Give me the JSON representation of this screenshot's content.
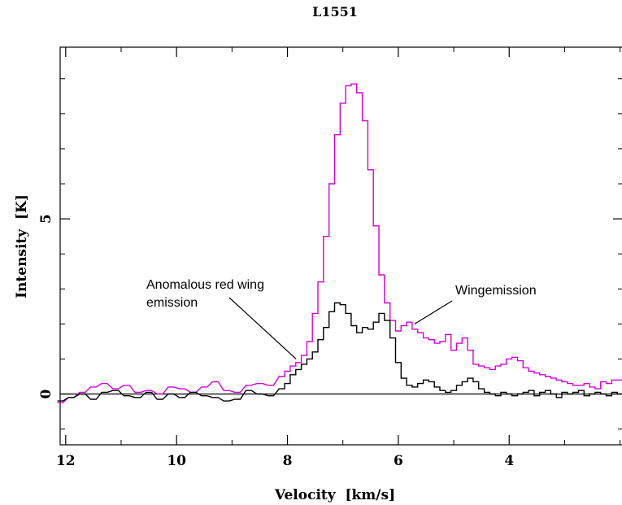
{
  "chart_data": {
    "type": "line",
    "title": "L1551",
    "xlabel": "Velocity  [km/s]",
    "ylabel": "Intensity  [K]",
    "xlim": [
      12.1,
      1.95
    ],
    "ylim": [
      -1.45,
      9.9
    ],
    "x_ticks": [
      12,
      10,
      8,
      6,
      4
    ],
    "x_tick_labels": [
      "12",
      "10",
      "8",
      "6",
      "4"
    ],
    "y_ticks": [
      0,
      5
    ],
    "y_tick_labels": [
      "0",
      "5"
    ],
    "grid": false,
    "legend": "none",
    "zero_line": true,
    "annotations": [
      {
        "text_lines": [
          "Anomalous red wing",
          "emission"
        ],
        "points_to": [
          7.8,
          1.0
        ]
      },
      {
        "text_lines": [
          "Wingemission"
        ],
        "points_to": [
          5.75,
          2.0
        ]
      }
    ],
    "series": [
      {
        "color": "#d400d4",
        "x": [
          12.1,
          11.9,
          11.7,
          11.5,
          11.3,
          11.1,
          10.9,
          10.7,
          10.5,
          10.3,
          10.1,
          9.9,
          9.7,
          9.5,
          9.3,
          9.1,
          8.9,
          8.7,
          8.5,
          8.3,
          8.1,
          8.0,
          7.9,
          7.8,
          7.7,
          7.6,
          7.5,
          7.4,
          7.3,
          7.2,
          7.1,
          7.0,
          6.9,
          6.8,
          6.7,
          6.6,
          6.5,
          6.4,
          6.3,
          6.2,
          6.1,
          6.0,
          5.9,
          5.8,
          5.7,
          5.6,
          5.5,
          5.4,
          5.3,
          5.2,
          5.1,
          5.0,
          4.9,
          4.8,
          4.7,
          4.6,
          4.5,
          4.4,
          4.3,
          4.2,
          4.1,
          4.0,
          3.9,
          3.8,
          3.7,
          3.6,
          3.5,
          3.4,
          3.3,
          3.2,
          3.1,
          3.0,
          2.9,
          2.8,
          2.7,
          2.6,
          2.5,
          2.4,
          2.3,
          2.2,
          2.1,
          2.0
        ],
        "y": [
          -0.25,
          -0.1,
          0.05,
          0.2,
          0.3,
          0.15,
          0.25,
          0.05,
          0.1,
          0.0,
          0.2,
          0.15,
          0.05,
          0.2,
          0.35,
          0.1,
          0.05,
          0.25,
          0.3,
          0.25,
          0.5,
          0.65,
          0.8,
          0.9,
          1.1,
          1.5,
          2.3,
          3.2,
          4.5,
          6.0,
          7.4,
          8.3,
          8.8,
          8.85,
          8.6,
          7.8,
          6.4,
          4.8,
          3.4,
          2.6,
          2.1,
          1.8,
          1.95,
          2.05,
          1.85,
          1.75,
          1.6,
          1.55,
          1.45,
          1.5,
          1.7,
          1.25,
          1.45,
          1.6,
          1.25,
          0.85,
          0.8,
          0.75,
          0.7,
          0.8,
          0.85,
          1.0,
          1.05,
          0.95,
          0.75,
          0.65,
          0.6,
          0.55,
          0.5,
          0.45,
          0.4,
          0.35,
          0.3,
          0.25,
          0.25,
          0.3,
          0.2,
          0.15,
          0.35,
          0.3,
          0.4,
          0.4
        ]
      },
      {
        "color": "#000000",
        "x": [
          12.1,
          11.9,
          11.7,
          11.5,
          11.3,
          11.1,
          10.9,
          10.7,
          10.5,
          10.3,
          10.1,
          9.9,
          9.7,
          9.5,
          9.3,
          9.1,
          8.9,
          8.7,
          8.5,
          8.3,
          8.1,
          8.0,
          7.9,
          7.8,
          7.7,
          7.6,
          7.5,
          7.4,
          7.3,
          7.2,
          7.1,
          7.0,
          6.9,
          6.8,
          6.7,
          6.6,
          6.5,
          6.4,
          6.3,
          6.2,
          6.1,
          6.0,
          5.9,
          5.8,
          5.7,
          5.6,
          5.5,
          5.4,
          5.3,
          5.2,
          5.1,
          5.0,
          4.9,
          4.8,
          4.7,
          4.6,
          4.5,
          4.4,
          4.3,
          4.2,
          4.1,
          4.0,
          3.9,
          3.8,
          3.7,
          3.6,
          3.5,
          3.4,
          3.3,
          3.2,
          3.1,
          3.0,
          2.9,
          2.8,
          2.7,
          2.6,
          2.5,
          2.4,
          2.3,
          2.2,
          2.1,
          2.0
        ],
        "y": [
          -0.2,
          -0.1,
          0.0,
          -0.15,
          0.05,
          0.1,
          -0.05,
          -0.1,
          0.05,
          -0.15,
          0.0,
          -0.1,
          0.05,
          -0.05,
          -0.1,
          -0.2,
          -0.15,
          0.1,
          0.0,
          -0.05,
          0.15,
          0.3,
          0.55,
          0.7,
          0.85,
          1.0,
          1.2,
          1.55,
          1.9,
          2.35,
          2.6,
          2.55,
          2.3,
          1.95,
          1.75,
          1.9,
          1.85,
          2.05,
          2.3,
          2.1,
          1.6,
          0.9,
          0.45,
          0.25,
          0.2,
          0.3,
          0.4,
          0.35,
          0.2,
          0.1,
          0.05,
          0.1,
          0.25,
          0.35,
          0.45,
          0.35,
          0.15,
          0.05,
          0.0,
          -0.05,
          0.05,
          0.0,
          -0.05,
          0.0,
          0.05,
          0.1,
          -0.05,
          0.05,
          0.1,
          0.0,
          -0.1,
          0.05,
          0.0,
          0.05,
          0.1,
          -0.05,
          0.0,
          0.05,
          0.0,
          -0.05,
          0.05,
          0.0
        ]
      }
    ]
  }
}
